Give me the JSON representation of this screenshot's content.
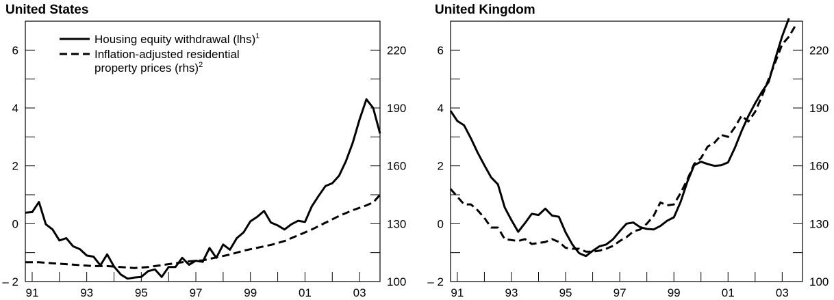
{
  "chart_data": [
    {
      "type": "line",
      "title": "United States",
      "x_tick_labels": [
        "91",
        "93",
        "95",
        "97",
        "99",
        "01",
        "03"
      ],
      "x_tick_years": [
        1991,
        1993,
        1995,
        1997,
        1999,
        2001,
        2003
      ],
      "xlim": [
        1990.75,
        2003.75
      ],
      "y_left": {
        "lim": [
          -2,
          7
        ],
        "ticks": [
          -2,
          0,
          2,
          4,
          6
        ],
        "tick_labels": [
          "– 2",
          "0",
          "2",
          "4",
          "6"
        ]
      },
      "y_right": {
        "lim": [
          100,
          235
        ],
        "ticks": [
          100,
          130,
          160,
          190,
          220
        ],
        "tick_labels": [
          "100",
          "130",
          "160",
          "190",
          "220"
        ]
      },
      "legend": {
        "position": "top-left",
        "entries": [
          {
            "label": "Housing equity withdrawal (lhs)",
            "sup": "1",
            "style": "solid"
          },
          {
            "label": "Inflation-adjusted residential",
            "label2": "property prices (rhs)",
            "sup": "2",
            "style": "dashed"
          }
        ]
      },
      "series": [
        {
          "name": "Housing equity withdrawal (lhs)",
          "axis": "left",
          "style": "solid",
          "x": [
            1990.75,
            1991.0,
            1991.25,
            1991.5,
            1991.75,
            1992.0,
            1992.25,
            1992.5,
            1992.75,
            1993.0,
            1993.25,
            1993.5,
            1993.75,
            1994.0,
            1994.25,
            1994.5,
            1994.75,
            1995.0,
            1995.25,
            1995.5,
            1995.75,
            1996.0,
            1996.25,
            1996.5,
            1996.75,
            1997.0,
            1997.25,
            1997.5,
            1997.75,
            1998.0,
            1998.25,
            1998.5,
            1998.75,
            1999.0,
            1999.25,
            1999.5,
            1999.75,
            2000.0,
            2000.25,
            2000.5,
            2000.75,
            2001.0,
            2001.25,
            2001.5,
            2001.75,
            2002.0,
            2002.25,
            2002.5,
            2002.75,
            2003.0,
            2003.25,
            2003.5,
            2003.75
          ],
          "y": [
            0.38,
            0.4,
            0.75,
            -0.02,
            -0.2,
            -0.58,
            -0.5,
            -0.78,
            -0.88,
            -1.1,
            -1.14,
            -1.44,
            -1.06,
            -1.48,
            -1.76,
            -1.9,
            -1.86,
            -1.84,
            -1.64,
            -1.58,
            -1.84,
            -1.5,
            -1.5,
            -1.18,
            -1.42,
            -1.28,
            -1.32,
            -0.84,
            -1.18,
            -0.72,
            -0.9,
            -0.5,
            -0.3,
            0.08,
            0.24,
            0.44,
            0.04,
            -0.06,
            -0.2,
            -0.02,
            0.1,
            0.06,
            0.6,
            0.96,
            1.3,
            1.4,
            1.66,
            2.16,
            2.8,
            3.6,
            4.3,
            4.0,
            3.12
          ]
        },
        {
          "name": "Inflation-adjusted residential property prices (rhs)",
          "axis": "right",
          "style": "dashed",
          "x": [
            1990.75,
            1991.25,
            1991.75,
            1992.25,
            1992.75,
            1993.25,
            1993.75,
            1994.25,
            1994.75,
            1995.25,
            1995.75,
            1996.25,
            1996.75,
            1997.25,
            1997.75,
            1998.25,
            1998.75,
            1999.25,
            1999.75,
            2000.25,
            2000.75,
            2001.25,
            2001.75,
            2002.25,
            2002.75,
            2003.25,
            2003.5,
            2003.75
          ],
          "y": [
            110,
            110,
            109.5,
            109,
            108.5,
            108,
            108,
            107.5,
            107,
            107.5,
            108.5,
            109.5,
            110.5,
            111,
            112.5,
            114,
            116,
            117.5,
            119,
            121,
            124,
            127,
            130.5,
            134,
            137,
            139.5,
            141,
            145
          ]
        }
      ]
    },
    {
      "type": "line",
      "title": "United Kingdom",
      "x_tick_labels": [
        "91",
        "93",
        "95",
        "97",
        "99",
        "01",
        "03"
      ],
      "x_tick_years": [
        1991,
        1993,
        1995,
        1997,
        1999,
        2001,
        2003
      ],
      "xlim": [
        1990.75,
        2003.75
      ],
      "y_left": {
        "lim": [
          -2,
          7
        ],
        "ticks": [
          -2,
          0,
          2,
          4,
          6
        ],
        "tick_labels": [
          "– 2",
          "0",
          "2",
          "4",
          "6"
        ]
      },
      "y_right": {
        "lim": [
          100,
          235
        ],
        "ticks": [
          100,
          130,
          160,
          190,
          220
        ],
        "tick_labels": [
          "100",
          "130",
          "160",
          "190",
          "220"
        ]
      },
      "series": [
        {
          "name": "Housing equity withdrawal (lhs)",
          "axis": "left",
          "style": "solid",
          "x": [
            1990.75,
            1991.0,
            1991.25,
            1991.5,
            1991.75,
            1992.0,
            1992.25,
            1992.5,
            1992.75,
            1993.0,
            1993.25,
            1993.5,
            1993.75,
            1994.0,
            1994.25,
            1994.5,
            1994.75,
            1995.0,
            1995.25,
            1995.5,
            1995.75,
            1996.0,
            1996.25,
            1996.5,
            1996.75,
            1997.0,
            1997.25,
            1997.5,
            1997.75,
            1998.0,
            1998.25,
            1998.5,
            1998.75,
            1999.0,
            1999.25,
            1999.5,
            1999.75,
            2000.0,
            2000.25,
            2000.5,
            2000.75,
            2001.0,
            2001.25,
            2001.5,
            2001.75,
            2002.0,
            2002.25,
            2002.5,
            2002.75,
            2003.0,
            2003.25
          ],
          "y": [
            3.9,
            3.55,
            3.4,
            2.95,
            2.46,
            2.02,
            1.6,
            1.36,
            0.56,
            0.12,
            -0.28,
            0.02,
            0.34,
            0.3,
            0.52,
            0.28,
            0.24,
            -0.3,
            -0.72,
            -1.02,
            -1.12,
            -0.94,
            -0.78,
            -0.72,
            -0.54,
            -0.26,
            0.0,
            0.04,
            -0.12,
            -0.18,
            -0.2,
            -0.08,
            0.1,
            0.22,
            0.76,
            1.46,
            2.02,
            2.14,
            2.06,
            2.0,
            2.02,
            2.12,
            2.62,
            3.2,
            3.72,
            4.16,
            4.56,
            4.9,
            5.72,
            6.48,
            7.1
          ]
        },
        {
          "name": "Inflation-adjusted residential property prices (rhs)",
          "axis": "right",
          "style": "dashed",
          "x": [
            1990.75,
            1991.0,
            1991.25,
            1991.5,
            1991.75,
            1992.0,
            1992.25,
            1992.5,
            1992.75,
            1993.0,
            1993.25,
            1993.5,
            1993.75,
            1994.0,
            1994.25,
            1994.5,
            1994.75,
            1995.0,
            1995.25,
            1995.5,
            1995.75,
            1996.0,
            1996.25,
            1996.5,
            1996.75,
            1997.0,
            1997.25,
            1997.5,
            1997.75,
            1998.0,
            1998.25,
            1998.5,
            1998.75,
            1999.0,
            1999.25,
            1999.5,
            1999.75,
            2000.0,
            2000.25,
            2000.5,
            2000.75,
            2001.0,
            2001.25,
            2001.5,
            2001.75,
            2002.0,
            2002.25,
            2002.5,
            2002.75,
            2003.0,
            2003.25,
            2003.5
          ],
          "y": [
            148,
            144,
            140,
            140,
            137,
            133,
            128,
            128,
            122,
            121.5,
            121,
            122,
            119.5,
            120,
            120.5,
            122,
            120.5,
            117.5,
            117,
            117,
            115.5,
            115.5,
            116,
            117,
            118.5,
            121,
            123,
            126,
            127,
            130,
            134,
            141,
            139.5,
            140,
            146,
            153,
            161,
            164,
            170,
            172,
            176,
            175,
            180,
            186,
            183,
            188,
            196,
            205,
            214,
            223,
            227,
            233
          ]
        }
      ]
    }
  ]
}
